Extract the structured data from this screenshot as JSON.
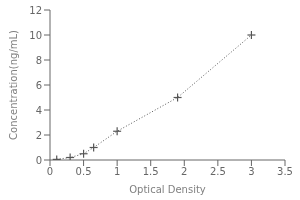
{
  "chart_data": {
    "type": "line",
    "x": [
      0.1,
      0.3,
      0.5,
      0.65,
      1.0,
      1.9,
      3.0
    ],
    "values": [
      0.05,
      0.2,
      0.5,
      1.0,
      2.3,
      5.0,
      10.0
    ],
    "xlabel": "Optical Density",
    "ylabel": "Concentration(ng/mL)",
    "xlim": [
      0,
      3.5
    ],
    "ylim": [
      0,
      12
    ],
    "xticks": [
      0,
      0.5,
      1,
      1.5,
      2,
      2.5,
      3,
      3.5
    ],
    "yticks": [
      0,
      2,
      4,
      6,
      8,
      10,
      12
    ],
    "color": "#555555",
    "marker": "plus",
    "line_style": "dotted",
    "grid": false
  }
}
